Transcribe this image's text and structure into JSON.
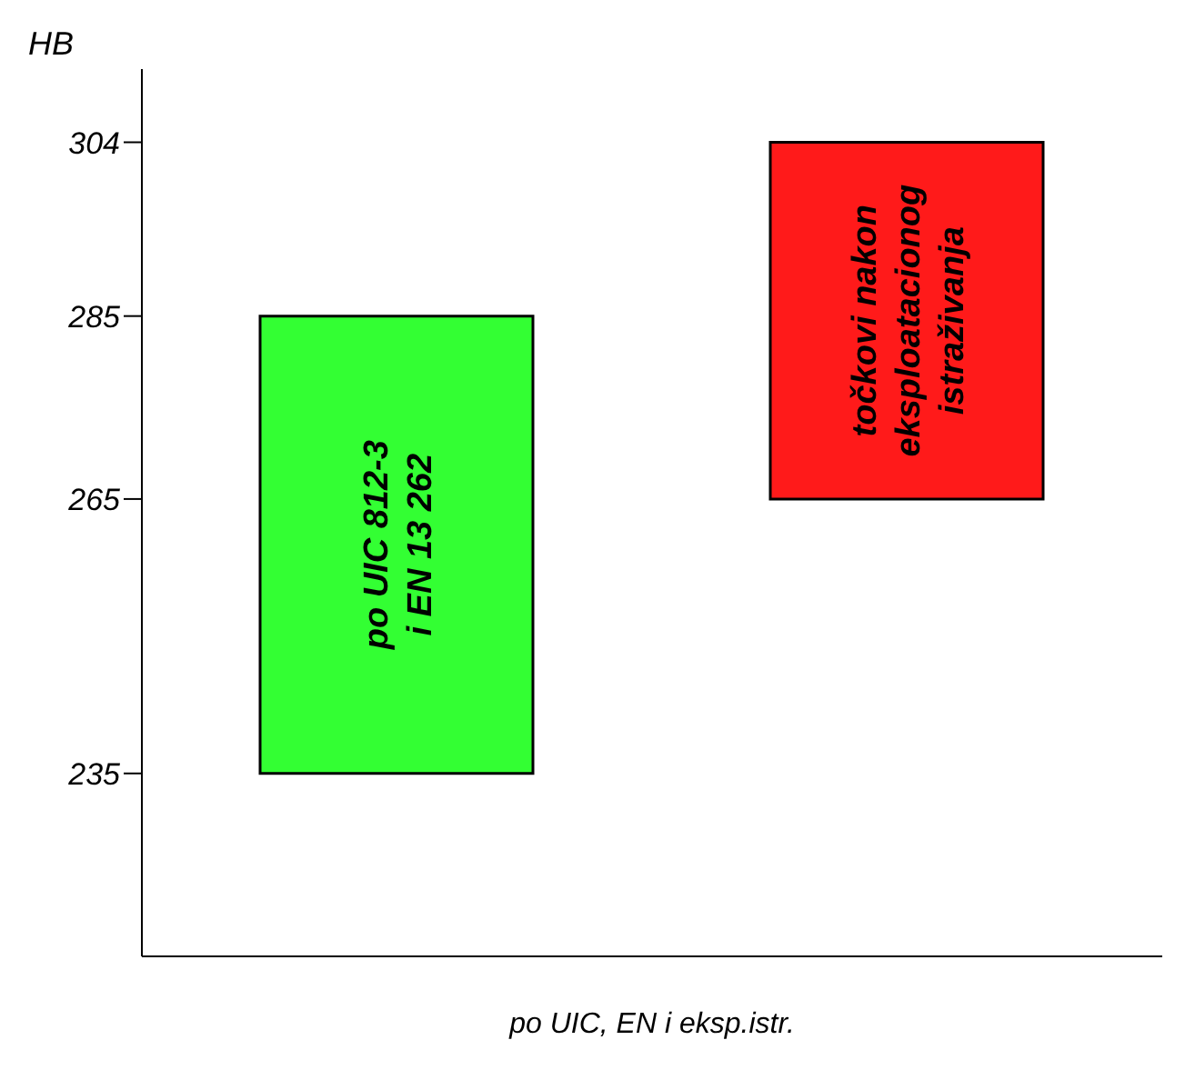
{
  "chart_data": {
    "type": "bar",
    "categories": [
      null,
      null
    ],
    "values": [
      50,
      39
    ],
    "base": [
      235,
      265
    ],
    "colors": [
      "#33ff33",
      "#ff1a1a"
    ],
    "ylabel": "HB",
    "xlabel": "po UIC, EN i eksp.istr.",
    "ylim": [
      215,
      312
    ],
    "yticks": [
      235,
      265,
      285,
      304
    ],
    "annotations": [
      "po  UIC  812-3\ni EN 13 262",
      "točkovi nakon\neksploatacionog\nistraživanja"
    ],
    "grid": false,
    "legend": false
  }
}
